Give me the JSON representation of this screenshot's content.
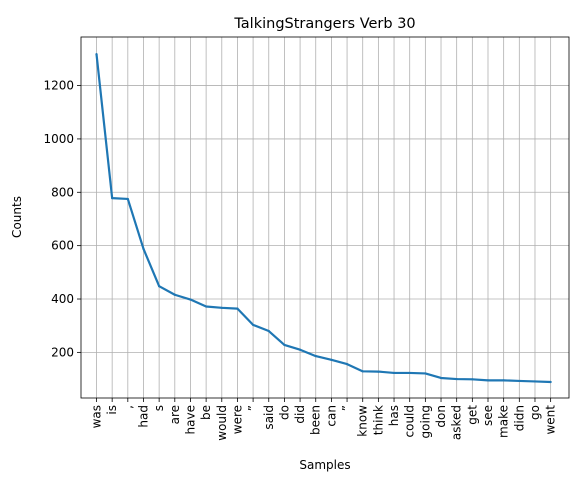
{
  "chart_data": {
    "type": "line",
    "title": "TalkingStrangers Verb 30",
    "xlabel": "Samples",
    "ylabel": "Counts",
    "categories": [
      "was",
      "is",
      ",",
      "had",
      "s",
      "are",
      "have",
      "be",
      "would",
      "were",
      "”",
      "said",
      "do",
      "did",
      "been",
      "can",
      "”",
      "know",
      "think",
      "has",
      "could",
      "going",
      "don",
      "asked",
      "get",
      "see",
      "make",
      "didn",
      "go",
      "went"
    ],
    "series": [
      {
        "color": "#1f77b4",
        "values": [
          1318,
          778,
          775,
          588,
          448,
          416,
          398,
          372,
          367,
          364,
          303,
          280,
          228,
          210,
          186,
          172,
          156,
          129,
          128,
          123,
          123,
          121,
          104,
          100,
          99,
          95,
          95,
          93,
          91,
          89
        ]
      }
    ],
    "yticks": [
      200,
      400,
      600,
      800,
      1000,
      1200
    ],
    "ylim": [
      29,
      1382
    ],
    "grid": true
  }
}
